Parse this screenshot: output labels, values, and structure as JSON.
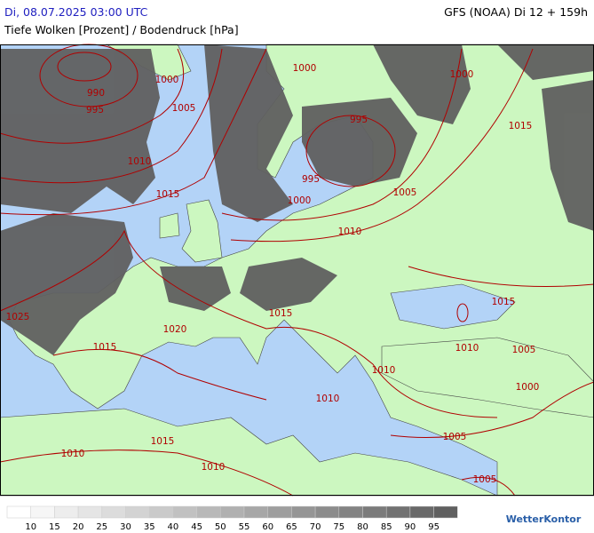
{
  "header": {
    "date": "Di, 08.07.2025 03:00 UTC",
    "title": "Tiefe Wolken [Prozent] / Bodendruck [hPa]",
    "model": "GFS (NOAA) Di 12 + 159h"
  },
  "isobar_labels": [
    "990",
    "995",
    "1000",
    "1005",
    "1010",
    "1015",
    "1025",
    "1020",
    "1015",
    "1015",
    "1010",
    "1010",
    "1000",
    "995",
    "995",
    "1000",
    "1005",
    "1010",
    "1015",
    "1010",
    "1010",
    "1005",
    "1005",
    "1000",
    "1015",
    "1015",
    "1010",
    "1005",
    "1000"
  ],
  "legend": {
    "labels": [
      10,
      15,
      20,
      25,
      30,
      35,
      40,
      45,
      50,
      55,
      60,
      65,
      70,
      75,
      80,
      85,
      90,
      95
    ]
  },
  "logo": "WetterKontor"
}
